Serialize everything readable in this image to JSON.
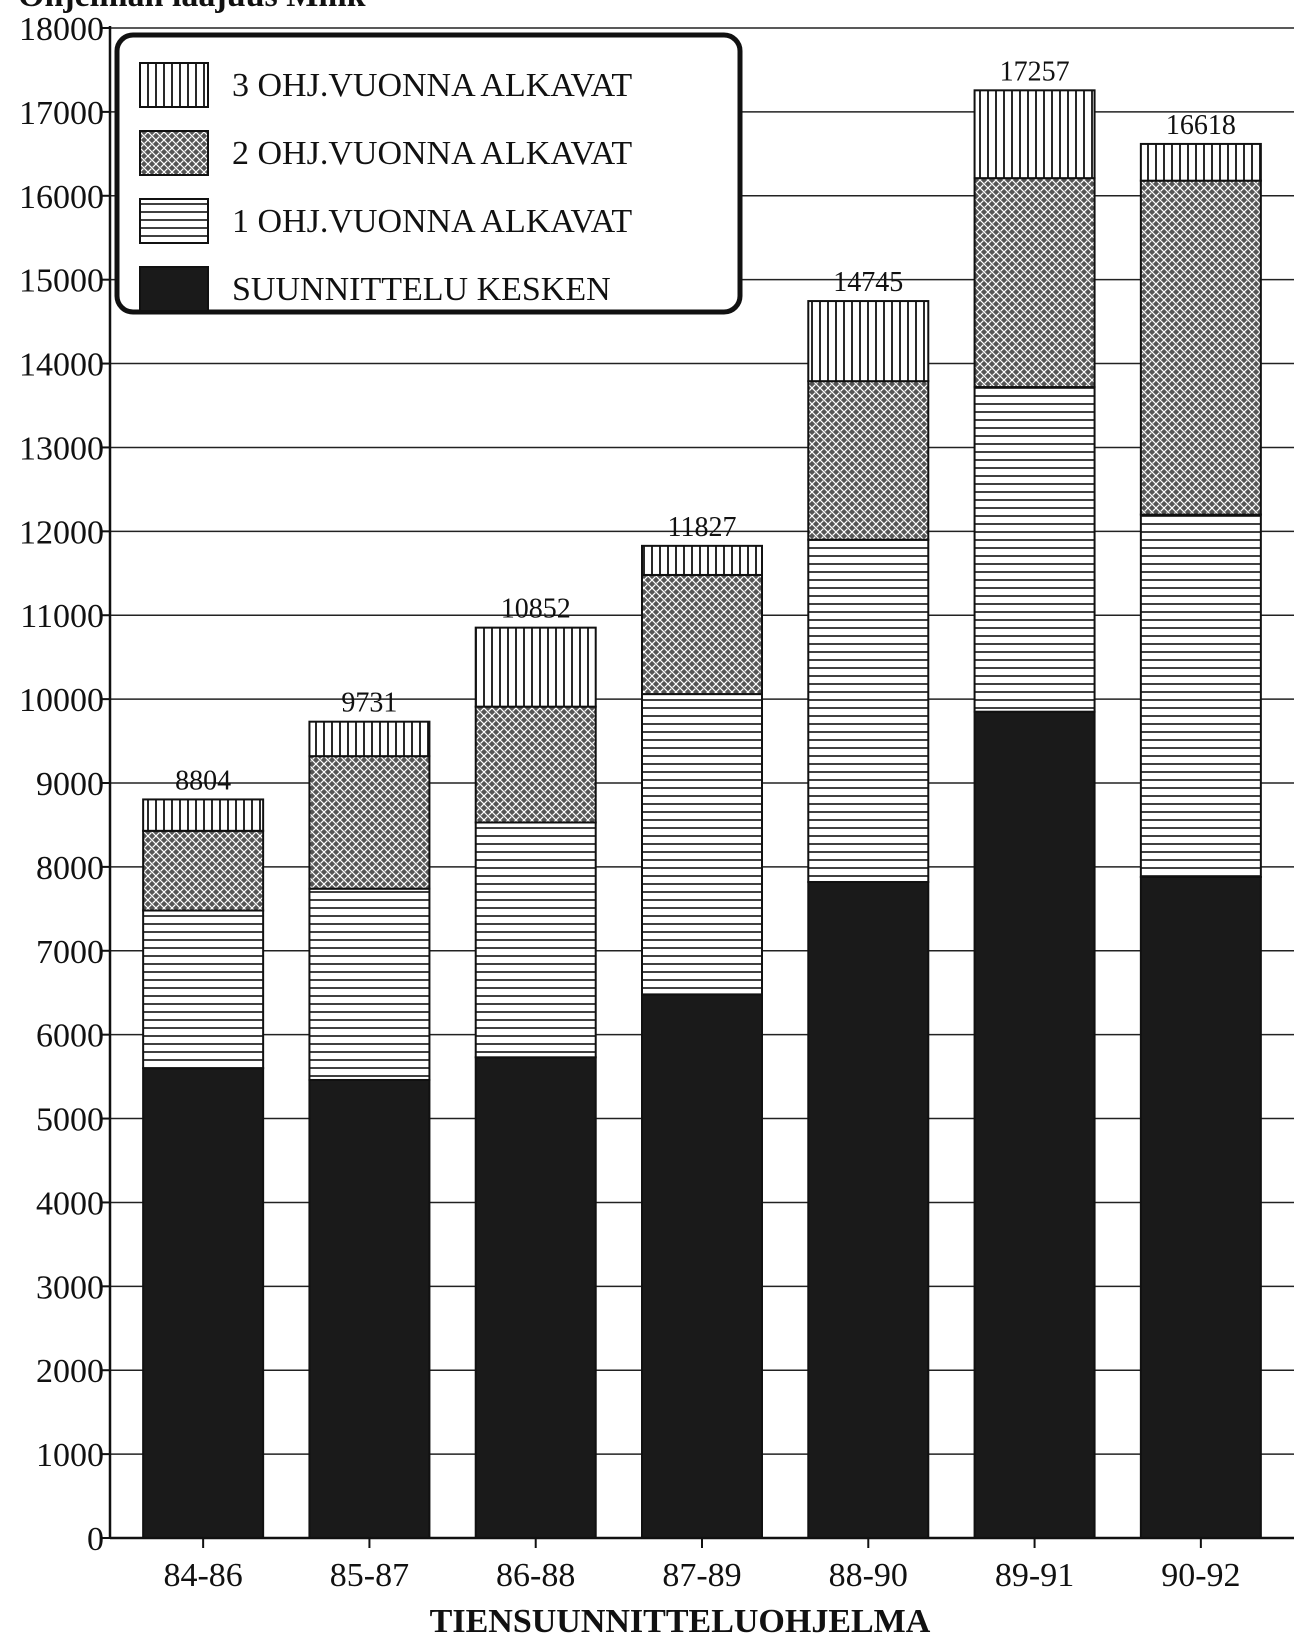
{
  "chart_data": {
    "type": "bar",
    "stacked": true,
    "title": "",
    "ylabel": "Ohjelman laajuus Mmk",
    "xlabel": "TIENSUUNNITTELUOHJELMA",
    "ylim": [
      0,
      18000
    ],
    "yticks": [
      "0",
      "1000",
      "2000",
      "3000",
      "4000",
      "5000",
      "6000",
      "7000",
      "8000",
      "9000",
      "10000",
      "11000",
      "12000",
      "13000",
      "14000",
      "15000",
      "16000",
      "17000",
      "18000"
    ],
    "grid": true,
    "legend_position": "top-left",
    "categories": [
      "84-86",
      "85-87",
      "86-88",
      "87-89",
      "88-90",
      "89-91",
      "90-92"
    ],
    "totals": [
      "8804",
      "9731",
      "10852",
      "11827",
      "14745",
      "17257",
      "16618"
    ],
    "series": [
      {
        "name": "SUUNNITTELU KESKEN",
        "pattern": "solid",
        "values": [
          5600,
          5460,
          5730,
          6480,
          7820,
          9850,
          7880
        ]
      },
      {
        "name": "1 OHJ.VUONNA ALKAVAT",
        "pattern": "horizontal",
        "values": [
          1880,
          2280,
          2800,
          3580,
          4080,
          3870,
          4320
        ]
      },
      {
        "name": "2 OHJ.VUONNA ALKAVAT",
        "pattern": "crosshatch",
        "values": [
          950,
          1580,
          1380,
          1420,
          1890,
          2490,
          3980
        ]
      },
      {
        "name": "3 OHJ.VUONNA ALKAVAT",
        "pattern": "vertical",
        "values": [
          374,
          411,
          942,
          347,
          955,
          1047,
          438
        ]
      }
    ]
  }
}
